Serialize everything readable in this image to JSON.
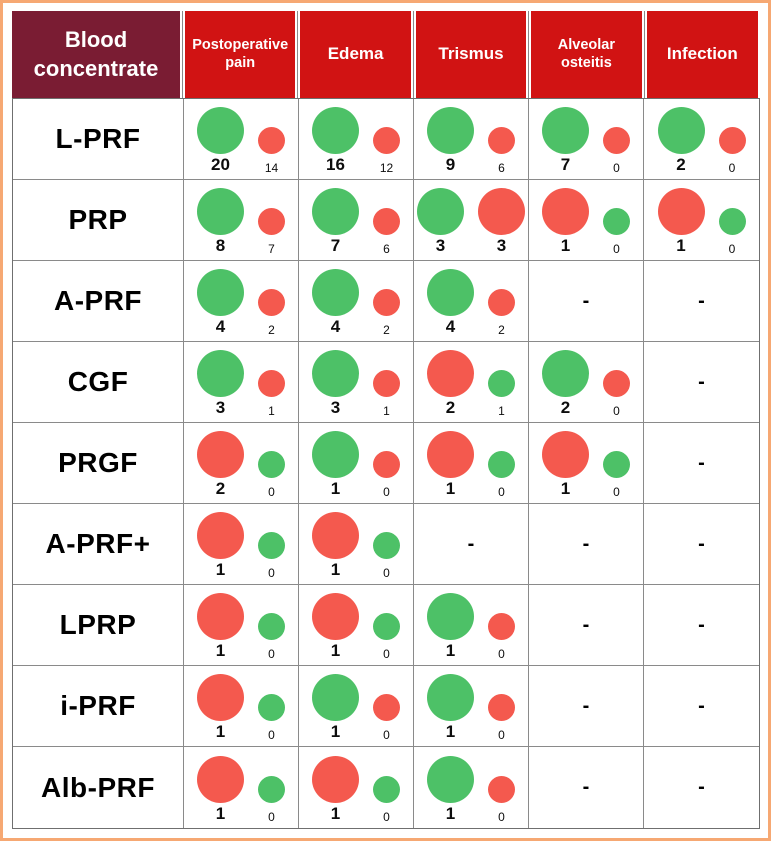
{
  "colors": {
    "frame_orange": "#f6a873",
    "header_red": "#d11313",
    "header_maroon": "#7a1c33",
    "bubble_green": "#4dc167",
    "bubble_red": "#f4594e",
    "grid_line": "#8a8a8a"
  },
  "chart_data": {
    "type": "table",
    "row_header": "Blood concentrate",
    "columns": [
      "Postoperative pain",
      "Edema",
      "Trismus",
      "Alveolar osteitis",
      "Infection"
    ],
    "legend_note": "",
    "rows": [
      {
        "label": "L-PRF",
        "cells": [
          {
            "bubbles": [
              {
                "color": "green",
                "size": "large",
                "count": 20
              },
              {
                "color": "red",
                "size": "small",
                "count": 14
              }
            ]
          },
          {
            "bubbles": [
              {
                "color": "green",
                "size": "large",
                "count": 16
              },
              {
                "color": "red",
                "size": "small",
                "count": 12
              }
            ]
          },
          {
            "bubbles": [
              {
                "color": "green",
                "size": "large",
                "count": 9
              },
              {
                "color": "red",
                "size": "small",
                "count": 6
              }
            ]
          },
          {
            "bubbles": [
              {
                "color": "green",
                "size": "large",
                "count": 7
              },
              {
                "color": "red",
                "size": "small",
                "count": 0
              }
            ]
          },
          {
            "bubbles": [
              {
                "color": "green",
                "size": "large",
                "count": 2
              },
              {
                "color": "red",
                "size": "small",
                "count": 0
              }
            ]
          }
        ]
      },
      {
        "label": "PRP",
        "cells": [
          {
            "bubbles": [
              {
                "color": "green",
                "size": "large",
                "count": 8
              },
              {
                "color": "red",
                "size": "small",
                "count": 7
              }
            ]
          },
          {
            "bubbles": [
              {
                "color": "green",
                "size": "large",
                "count": 7
              },
              {
                "color": "red",
                "size": "small",
                "count": 6
              }
            ]
          },
          {
            "bubbles": [
              {
                "color": "green",
                "size": "large",
                "count": 3
              },
              {
                "color": "red",
                "size": "large",
                "count": 3
              }
            ]
          },
          {
            "bubbles": [
              {
                "color": "red",
                "size": "large",
                "count": 1
              },
              {
                "color": "green",
                "size": "small",
                "count": 0
              }
            ]
          },
          {
            "bubbles": [
              {
                "color": "red",
                "size": "large",
                "count": 1
              },
              {
                "color": "green",
                "size": "small",
                "count": 0
              }
            ]
          }
        ]
      },
      {
        "label": "A-PRF",
        "cells": [
          {
            "bubbles": [
              {
                "color": "green",
                "size": "large",
                "count": 4
              },
              {
                "color": "red",
                "size": "small",
                "count": 2
              }
            ]
          },
          {
            "bubbles": [
              {
                "color": "green",
                "size": "large",
                "count": 4
              },
              {
                "color": "red",
                "size": "small",
                "count": 2
              }
            ]
          },
          {
            "bubbles": [
              {
                "color": "green",
                "size": "large",
                "count": 4
              },
              {
                "color": "red",
                "size": "small",
                "count": 2
              }
            ]
          },
          {
            "dash": "-"
          },
          {
            "dash": "-"
          }
        ]
      },
      {
        "label": "CGF",
        "cells": [
          {
            "bubbles": [
              {
                "color": "green",
                "size": "large",
                "count": 3
              },
              {
                "color": "red",
                "size": "small",
                "count": 1
              }
            ]
          },
          {
            "bubbles": [
              {
                "color": "green",
                "size": "large",
                "count": 3
              },
              {
                "color": "red",
                "size": "small",
                "count": 1
              }
            ]
          },
          {
            "bubbles": [
              {
                "color": "red",
                "size": "large",
                "count": 2
              },
              {
                "color": "green",
                "size": "small",
                "count": 1
              }
            ]
          },
          {
            "bubbles": [
              {
                "color": "green",
                "size": "large",
                "count": 2
              },
              {
                "color": "red",
                "size": "small",
                "count": 0
              }
            ]
          },
          {
            "dash": "-"
          }
        ]
      },
      {
        "label": "PRGF",
        "cells": [
          {
            "bubbles": [
              {
                "color": "red",
                "size": "large",
                "count": 2
              },
              {
                "color": "green",
                "size": "small",
                "count": 0
              }
            ]
          },
          {
            "bubbles": [
              {
                "color": "green",
                "size": "large",
                "count": 1
              },
              {
                "color": "red",
                "size": "small",
                "count": 0
              }
            ]
          },
          {
            "bubbles": [
              {
                "color": "red",
                "size": "large",
                "count": 1
              },
              {
                "color": "green",
                "size": "small",
                "count": 0
              }
            ]
          },
          {
            "bubbles": [
              {
                "color": "red",
                "size": "large",
                "count": 1
              },
              {
                "color": "green",
                "size": "small",
                "count": 0
              }
            ]
          },
          {
            "dash": "-"
          }
        ]
      },
      {
        "label": "A-PRF+",
        "cells": [
          {
            "bubbles": [
              {
                "color": "red",
                "size": "large",
                "count": 1
              },
              {
                "color": "green",
                "size": "small",
                "count": 0
              }
            ]
          },
          {
            "bubbles": [
              {
                "color": "red",
                "size": "large",
                "count": 1
              },
              {
                "color": "green",
                "size": "small",
                "count": 0
              }
            ]
          },
          {
            "dash": "-"
          },
          {
            "dash": "-"
          },
          {
            "dash": "-"
          }
        ]
      },
      {
        "label": "LPRP",
        "cells": [
          {
            "bubbles": [
              {
                "color": "red",
                "size": "large",
                "count": 1
              },
              {
                "color": "green",
                "size": "small",
                "count": 0
              }
            ]
          },
          {
            "bubbles": [
              {
                "color": "red",
                "size": "large",
                "count": 1
              },
              {
                "color": "green",
                "size": "small",
                "count": 0
              }
            ]
          },
          {
            "bubbles": [
              {
                "color": "green",
                "size": "large",
                "count": 1
              },
              {
                "color": "red",
                "size": "small",
                "count": 0
              }
            ]
          },
          {
            "dash": "-"
          },
          {
            "dash": "-"
          }
        ]
      },
      {
        "label": "i-PRF",
        "cells": [
          {
            "bubbles": [
              {
                "color": "red",
                "size": "large",
                "count": 1
              },
              {
                "color": "green",
                "size": "small",
                "count": 0
              }
            ]
          },
          {
            "bubbles": [
              {
                "color": "green",
                "size": "large",
                "count": 1
              },
              {
                "color": "red",
                "size": "small",
                "count": 0
              }
            ]
          },
          {
            "bubbles": [
              {
                "color": "green",
                "size": "large",
                "count": 1
              },
              {
                "color": "red",
                "size": "small",
                "count": 0
              }
            ]
          },
          {
            "dash": "-"
          },
          {
            "dash": "-"
          }
        ]
      },
      {
        "label": "Alb-PRF",
        "cells": [
          {
            "bubbles": [
              {
                "color": "red",
                "size": "large",
                "count": 1
              },
              {
                "color": "green",
                "size": "small",
                "count": 0
              }
            ]
          },
          {
            "bubbles": [
              {
                "color": "red",
                "size": "large",
                "count": 1
              },
              {
                "color": "green",
                "size": "small",
                "count": 0
              }
            ]
          },
          {
            "bubbles": [
              {
                "color": "green",
                "size": "large",
                "count": 1
              },
              {
                "color": "red",
                "size": "small",
                "count": 0
              }
            ]
          },
          {
            "dash": "-"
          },
          {
            "dash": "-"
          }
        ]
      }
    ]
  }
}
